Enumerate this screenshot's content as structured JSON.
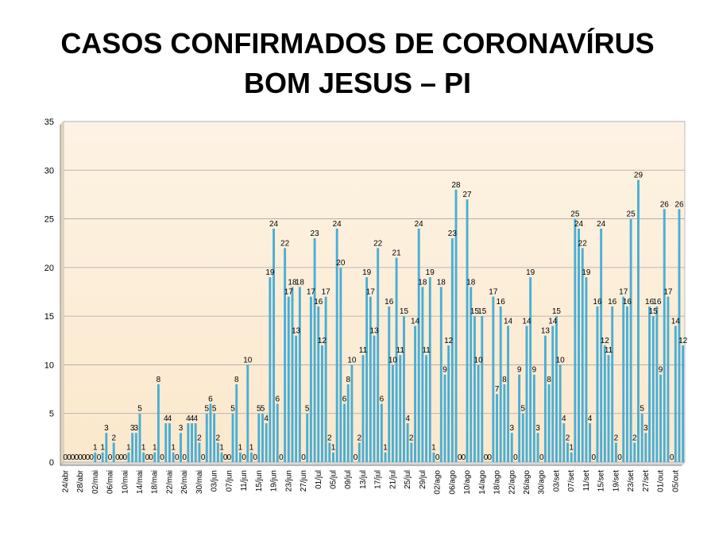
{
  "chart_data": {
    "type": "bar",
    "title_line1": "CASOS CONFIRMADOS DE CORONAVÍRUS",
    "title_line2": "BOM JESUS – PI",
    "xlabel": "",
    "ylabel": "",
    "ylim": [
      0,
      35
    ],
    "yticks": [
      0,
      5,
      10,
      15,
      20,
      25,
      30,
      35
    ],
    "grid": true,
    "legend": "none",
    "colors": {
      "bar": "#4aaed4",
      "plot_background": "#fdf0dc",
      "grid": "#a6a6a6"
    },
    "tick_labels": [
      "24/abr",
      "28/abr",
      "02/mai",
      "06/mai",
      "10/mai",
      "14/mai",
      "18/mai",
      "22/mai",
      "26/mai",
      "30/mai",
      "03/jun",
      "07/jun",
      "11/jun",
      "15/jun",
      "19/jun",
      "23/jun",
      "27/jun",
      "01/jul",
      "05/jul",
      "09/jul",
      "13/jul",
      "17/jul",
      "21/jul",
      "25/jul",
      "29/jul",
      "02/ago",
      "06/ago",
      "10/ago",
      "14/ago",
      "18/ago",
      "22/ago",
      "26/ago",
      "30/ago",
      "03/set",
      "07/set",
      "11/set",
      "15/set",
      "19/set",
      "23/set",
      "27/set",
      "01/out",
      "05/out"
    ],
    "values": [
      0,
      0,
      0,
      0,
      0,
      0,
      0,
      0,
      1,
      0,
      1,
      3,
      0,
      2,
      0,
      0,
      0,
      1,
      3,
      3,
      5,
      1,
      0,
      0,
      1,
      8,
      0,
      4,
      4,
      1,
      0,
      3,
      0,
      4,
      4,
      4,
      2,
      0,
      5,
      6,
      5,
      2,
      1,
      0,
      0,
      5,
      8,
      1,
      0,
      10,
      1,
      0,
      5,
      5,
      4,
      19,
      24,
      6,
      0,
      22,
      17,
      18,
      13,
      18,
      0,
      5,
      17,
      23,
      16,
      12,
      17,
      2,
      1,
      24,
      20,
      6,
      8,
      10,
      0,
      2,
      11,
      19,
      17,
      13,
      22,
      6,
      1,
      16,
      10,
      21,
      11,
      15,
      4,
      2,
      14,
      24,
      18,
      11,
      19,
      1,
      0,
      18,
      9,
      12,
      23,
      28,
      0,
      0,
      27,
      18,
      15,
      10,
      15,
      0,
      0,
      17,
      7,
      16,
      8,
      14,
      3,
      0,
      9,
      5,
      14,
      19,
      9,
      3,
      0,
      13,
      8,
      14,
      15,
      10,
      4,
      2,
      1,
      25,
      24,
      22,
      19,
      4,
      0,
      16,
      24,
      12,
      11,
      16,
      2,
      0,
      17,
      16,
      25,
      2,
      29,
      5,
      3,
      16,
      15,
      16,
      9,
      26,
      17,
      0,
      14,
      26,
      12
    ]
  }
}
